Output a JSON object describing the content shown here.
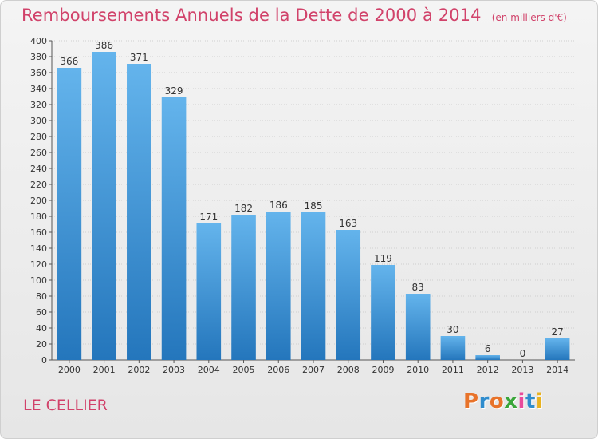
{
  "header": {
    "title": "Remboursements Annuels de la Dette de 2000 à 2014",
    "subtitle": "(en milliers d'€)"
  },
  "footer": {
    "commune": "LE CELLIER",
    "logo_text": "Proxiti"
  },
  "colors": {
    "title": "#d1426a",
    "bar_top": "#64b4ec",
    "bar_bottom": "#2476bc",
    "grid": "#cfcfcf",
    "logo_letters": [
      "#e8732a",
      "#2f8ccd",
      "#e8732a",
      "#3aa63a",
      "#e84b9b",
      "#2f8ccd",
      "#e8b220"
    ]
  },
  "chart_data": {
    "type": "bar",
    "categories": [
      "2000",
      "2001",
      "2002",
      "2003",
      "2004",
      "2005",
      "2006",
      "2007",
      "2008",
      "2009",
      "2010",
      "2011",
      "2012",
      "2013",
      "2014"
    ],
    "values": [
      366,
      386,
      371,
      329,
      171,
      182,
      186,
      185,
      163,
      119,
      83,
      30,
      6,
      0,
      27
    ],
    "title": "Remboursements Annuels de la Dette de 2000 à 2014",
    "subtitle": "(en milliers d'€)",
    "xlabel": "",
    "ylabel": "",
    "ylim": [
      0,
      400
    ],
    "yticks": [
      0,
      20,
      40,
      60,
      80,
      100,
      120,
      140,
      160,
      180,
      200,
      220,
      240,
      260,
      280,
      300,
      320,
      340,
      360,
      380,
      400
    ],
    "grid": true,
    "legend": "none"
  }
}
